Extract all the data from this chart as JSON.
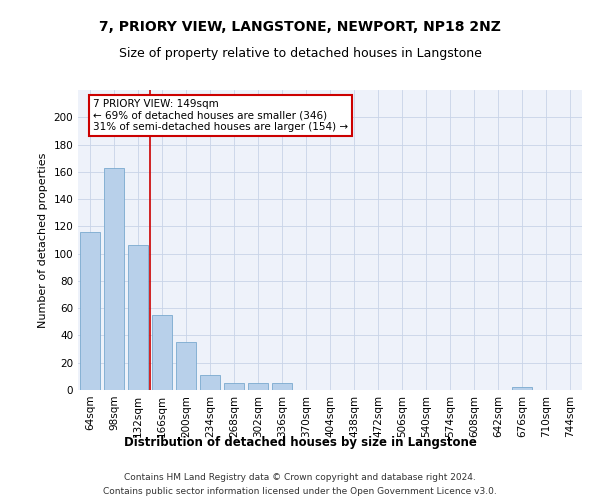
{
  "title": "7, PRIORY VIEW, LANGSTONE, NEWPORT, NP18 2NZ",
  "subtitle": "Size of property relative to detached houses in Langstone",
  "xlabel": "Distribution of detached houses by size in Langstone",
  "ylabel": "Number of detached properties",
  "categories": [
    "64sqm",
    "98sqm",
    "132sqm",
    "166sqm",
    "200sqm",
    "234sqm",
    "268sqm",
    "302sqm",
    "336sqm",
    "370sqm",
    "404sqm",
    "438sqm",
    "472sqm",
    "506sqm",
    "540sqm",
    "574sqm",
    "608sqm",
    "642sqm",
    "676sqm",
    "710sqm",
    "744sqm"
  ],
  "values": [
    116,
    163,
    106,
    55,
    35,
    11,
    5,
    5,
    5,
    0,
    0,
    0,
    0,
    0,
    0,
    0,
    0,
    0,
    2,
    0,
    0
  ],
  "bar_color": "#b8d0ea",
  "bar_edge_color": "#7aaacf",
  "vline_x": 2.5,
  "vline_color": "#cc0000",
  "annotation_line1": "7 PRIORY VIEW: 149sqm",
  "annotation_line2": "← 69% of detached houses are smaller (346)",
  "annotation_line3": "31% of semi-detached houses are larger (154) →",
  "annotation_box_color": "#cc0000",
  "ylim": [
    0,
    220
  ],
  "yticks": [
    0,
    20,
    40,
    60,
    80,
    100,
    120,
    140,
    160,
    180,
    200
  ],
  "grid_color": "#c8d4e8",
  "background_color": "#eef2fa",
  "footer_line1": "Contains HM Land Registry data © Crown copyright and database right 2024.",
  "footer_line2": "Contains public sector information licensed under the Open Government Licence v3.0.",
  "title_fontsize": 10,
  "subtitle_fontsize": 9,
  "xlabel_fontsize": 8.5,
  "ylabel_fontsize": 8,
  "tick_fontsize": 7.5,
  "annotation_fontsize": 7.5,
  "footer_fontsize": 6.5
}
